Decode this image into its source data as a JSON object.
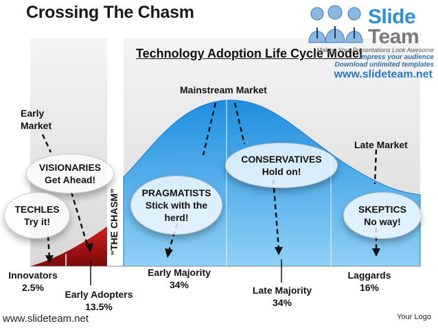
{
  "header": {
    "title": "Crossing The Chasm"
  },
  "diagram": {
    "subtitle": "Technology Adoption Life Cycle Model",
    "top_label": "Mainstream Market",
    "early_market": "Early\nMarket",
    "late_market": "Late Market",
    "chasm": "“THE CHASM”",
    "segments": [
      {
        "name": "Innovators",
        "pct": "2.5%"
      },
      {
        "name": "Early Adopters",
        "pct": "13.5%"
      },
      {
        "name": "Early Majority",
        "pct": "34%"
      },
      {
        "name": "Late Majority",
        "pct": "34%"
      },
      {
        "name": "Laggards",
        "pct": "16%"
      }
    ],
    "bubbles": {
      "techles": {
        "title": "TECHLES",
        "sub": "Try it!"
      },
      "visionaries": {
        "title": "VISIONARIES",
        "sub": "Get Ahead!"
      },
      "pragmatists": {
        "title": "PRAGMATISTS",
        "sub": "Stick with the\nherd!"
      },
      "conservatives": {
        "title": "CONSERVATIVES",
        "sub": "Hold on!"
      },
      "skeptics": {
        "title": "SKEPTICS",
        "sub": "No way!"
      }
    },
    "colors": {
      "curve_blue": "#29a6ea",
      "curve_red": "#c01818",
      "panel_gray": "#e3e3e3"
    }
  },
  "brand": {
    "logo_word1": "Slide",
    "logo_word2": "Team",
    "tagline1": "Making Your Presentations Look Awesome",
    "tagline2": "Impress your audience",
    "tagline3": "Download unlimited templates",
    "logo_url": "www.slideteam.net"
  },
  "footer": {
    "url": "www.slideteam.net",
    "your_logo": "Your Logo"
  }
}
